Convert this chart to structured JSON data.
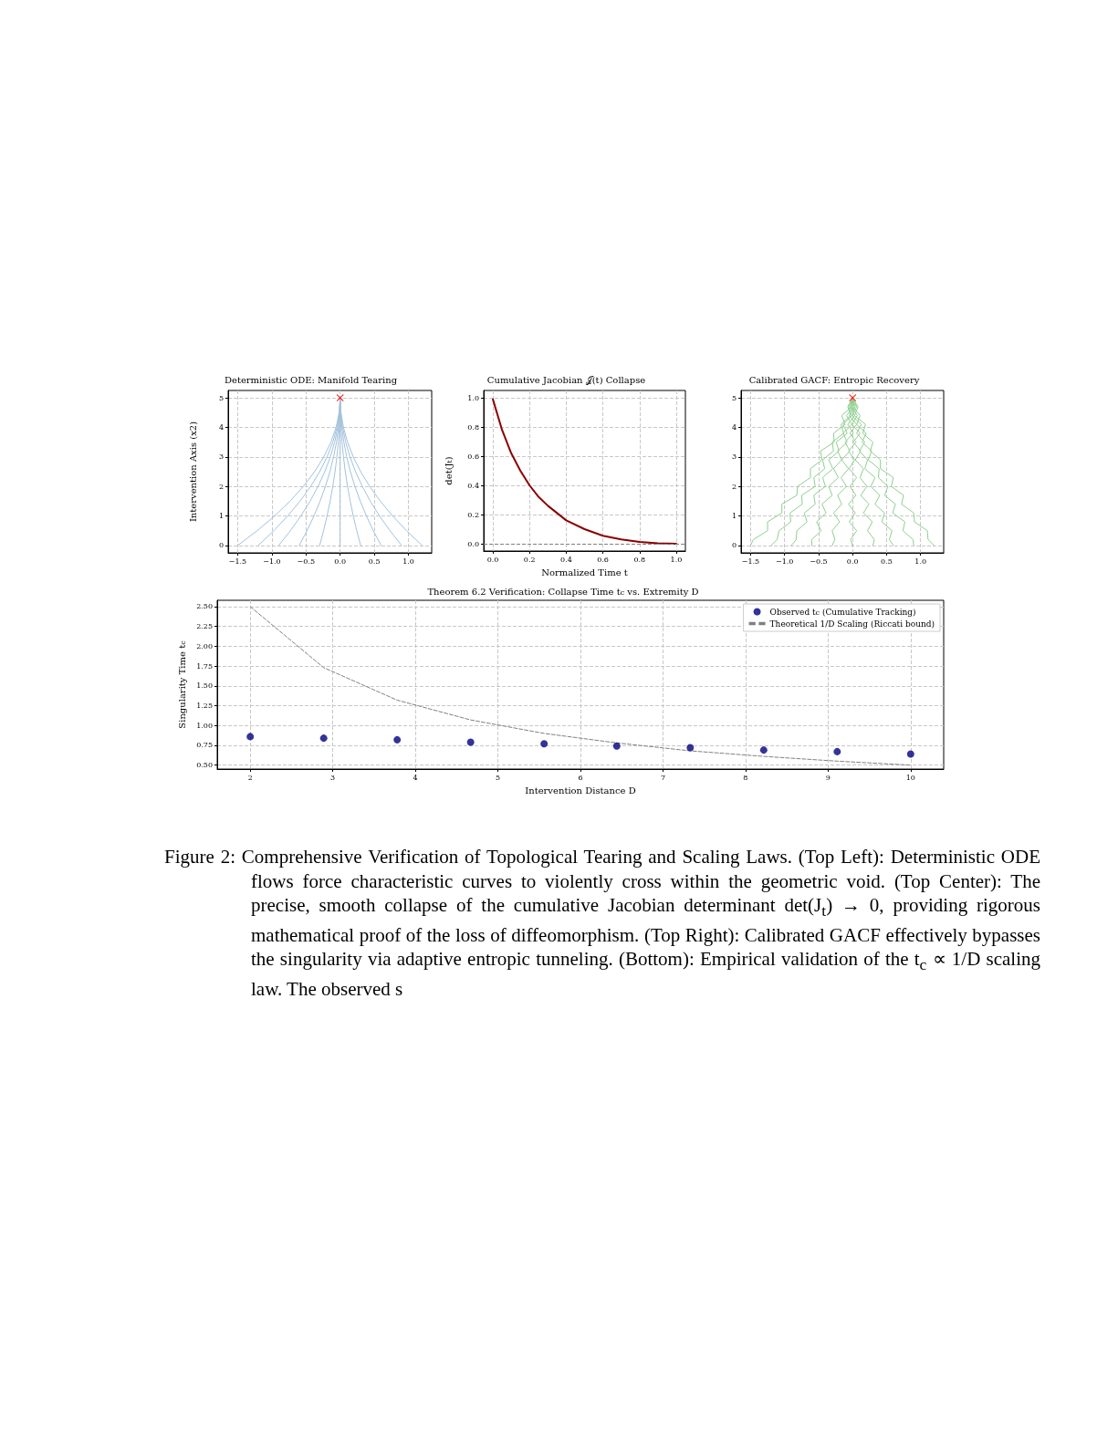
{
  "chart_data": [
    {
      "type": "line",
      "title": "Deterministic ODE: Manifold Tearing",
      "ylabel": "Intervention Axis (x2)",
      "xlim": [
        -1.64,
        1.34
      ],
      "ylim": [
        -0.25,
        5.25
      ],
      "xticks": [
        {
          "value": -1.5,
          "label": "−1.5"
        },
        {
          "value": -1,
          "label": "−1.0"
        },
        {
          "value": -0.5,
          "label": "−0.5"
        },
        {
          "value": 0,
          "label": "0.0"
        },
        {
          "value": 0.5,
          "label": "0.5"
        },
        {
          "value": 1,
          "label": "1.0"
        }
      ],
      "yticks": [
        0,
        1,
        2,
        3,
        4,
        5
      ],
      "grid": true,
      "legend": false,
      "series": [
        {
          "color": "#a3c2dc",
          "marker": "none",
          "x": [
            -1.5,
            -1.215,
            -0.96,
            -0.735,
            -0.54,
            -0.375,
            -0.24,
            -0.135,
            -0.06,
            -0.015,
            0
          ],
          "values": [
            0,
            0.5,
            1,
            1.5,
            2,
            2.5,
            3,
            3.5,
            4,
            4.5,
            5
          ]
        },
        {
          "color": "#a3c2dc",
          "marker": "none",
          "x": [
            -1.2,
            -0.972,
            -0.768,
            -0.588,
            -0.432,
            -0.3,
            -0.192,
            -0.108,
            -0.048,
            -0.012,
            0
          ],
          "values": [
            0,
            0.5,
            1,
            1.5,
            2,
            2.5,
            3,
            3.5,
            4,
            4.5,
            5
          ]
        },
        {
          "color": "#a3c2dc",
          "marker": "none",
          "x": [
            -0.9,
            -0.729,
            -0.576,
            -0.441,
            -0.324,
            -0.225,
            -0.144,
            -0.081,
            -0.036,
            -0.009,
            0
          ],
          "values": [
            0,
            0.5,
            1,
            1.5,
            2,
            2.5,
            3,
            3.5,
            4,
            4.5,
            5
          ]
        },
        {
          "color": "#a3c2dc",
          "marker": "none",
          "x": [
            -0.6,
            -0.486,
            -0.384,
            -0.294,
            -0.216,
            -0.15,
            -0.096,
            -0.054,
            -0.024,
            -0.006,
            0
          ],
          "values": [
            0,
            0.5,
            1,
            1.5,
            2,
            2.5,
            3,
            3.5,
            4,
            4.5,
            5
          ]
        },
        {
          "color": "#a3c2dc",
          "marker": "none",
          "x": [
            -0.3,
            -0.243,
            -0.192,
            -0.147,
            -0.108,
            -0.075,
            -0.048,
            -0.027,
            -0.012,
            -0.003,
            0
          ],
          "values": [
            0,
            0.5,
            1,
            1.5,
            2,
            2.5,
            3,
            3.5,
            4,
            4.5,
            5
          ]
        },
        {
          "color": "#a3c2dc",
          "marker": "none",
          "x": [
            0,
            0,
            0,
            0,
            0,
            0,
            0,
            0,
            0,
            0,
            0
          ],
          "values": [
            0,
            0.5,
            1,
            1.5,
            2,
            2.5,
            3,
            3.5,
            4,
            4.5,
            5
          ]
        },
        {
          "color": "#a3c2dc",
          "marker": "none",
          "x": [
            0.3,
            0.243,
            0.192,
            0.147,
            0.108,
            0.075,
            0.048,
            0.027,
            0.012,
            0.003,
            0
          ],
          "values": [
            0,
            0.5,
            1,
            1.5,
            2,
            2.5,
            3,
            3.5,
            4,
            4.5,
            5
          ]
        },
        {
          "color": "#a3c2dc",
          "marker": "none",
          "x": [
            0.6,
            0.486,
            0.384,
            0.294,
            0.216,
            0.15,
            0.096,
            0.054,
            0.024,
            0.006,
            0
          ],
          "values": [
            0,
            0.5,
            1,
            1.5,
            2,
            2.5,
            3,
            3.5,
            4,
            4.5,
            5
          ]
        },
        {
          "color": "#a3c2dc",
          "marker": "none",
          "x": [
            0.9,
            0.729,
            0.576,
            0.441,
            0.324,
            0.225,
            0.144,
            0.081,
            0.036,
            0.009,
            0
          ],
          "values": [
            0,
            0.5,
            1,
            1.5,
            2,
            2.5,
            3,
            3.5,
            4,
            4.5,
            5
          ]
        },
        {
          "color": "#a3c2dc",
          "marker": "none",
          "x": [
            1.2,
            0.972,
            0.768,
            0.588,
            0.432,
            0.3,
            0.192,
            0.108,
            0.048,
            0.012,
            0
          ],
          "values": [
            0,
            0.5,
            1,
            1.5,
            2,
            2.5,
            3,
            3.5,
            4,
            4.5,
            5
          ]
        },
        {
          "type": "scatter",
          "color": "#ff0000",
          "marker": "cross",
          "x": [
            0
          ],
          "values": [
            5
          ]
        }
      ]
    },
    {
      "type": "line",
      "title": "Cumulative Jacobian 𝒥(t) Collapse",
      "xlabel": "Normalized Time t",
      "ylabel": "det(J$_{t}$)",
      "xlim": [
        -0.05,
        1.05
      ],
      "ylim": [
        -0.05,
        1.05
      ],
      "xticks": [
        {
          "value": 0,
          "label": "0.0"
        },
        {
          "value": 0.2,
          "label": "0.2"
        },
        {
          "value": 0.4,
          "label": "0.4"
        },
        {
          "value": 0.6,
          "label": "0.6"
        },
        {
          "value": 0.8,
          "label": "0.8"
        },
        {
          "value": 1,
          "label": "1.0"
        }
      ],
      "yticks": [
        {
          "value": 0,
          "label": "0.0"
        },
        {
          "value": 0.2,
          "label": "0.2"
        },
        {
          "value": 0.4,
          "label": "0.4"
        },
        {
          "value": 0.6,
          "label": "0.6"
        },
        {
          "value": 0.8,
          "label": "0.8"
        },
        {
          "value": 1,
          "label": "1.0"
        }
      ],
      "grid": true,
      "legend": false,
      "ref_lines": [
        {
          "axis": "y",
          "value": 0,
          "color": "#808080",
          "line_style": "dashed"
        }
      ],
      "series": [
        {
          "color": "#8b0000",
          "marker": "none",
          "x": [
            0,
            0.05,
            0.1,
            0.15,
            0.2,
            0.25,
            0.3,
            0.4,
            0.5,
            0.6,
            0.7,
            0.8,
            0.9,
            1
          ],
          "values": [
            0.99,
            0.78,
            0.62,
            0.5,
            0.4,
            0.32,
            0.26,
            0.16,
            0.1,
            0.055,
            0.03,
            0.012,
            0.003,
            0
          ]
        }
      ]
    },
    {
      "type": "line",
      "title": "Calibrated GACF: Entropic Recovery",
      "xlim": [
        -1.64,
        1.34
      ],
      "ylim": [
        -0.25,
        5.25
      ],
      "xticks": [
        {
          "value": -1.5,
          "label": "−1.5"
        },
        {
          "value": -1,
          "label": "−1.0"
        },
        {
          "value": -0.5,
          "label": "−0.5"
        },
        {
          "value": 0,
          "label": "0.0"
        },
        {
          "value": 0.5,
          "label": "0.5"
        },
        {
          "value": 1,
          "label": "1.0"
        }
      ],
      "yticks": [
        0,
        1,
        2,
        3,
        4,
        5
      ],
      "grid": true,
      "legend": false,
      "series": [
        {
          "color": "#8fcf8f",
          "marker": "none",
          "x": [
            0,
            -0.01,
            -0.16,
            -0.11,
            -0.28,
            -0.27,
            -0.47,
            -0.45,
            -0.62,
            -0.62,
            -0.81,
            -0.82,
            -1.04,
            -1.04,
            -1.25,
            -1.25,
            -1.46,
            -1.5
          ],
          "values": [
            5,
            4.7,
            4.4,
            4.1,
            3.8,
            3.5,
            3.2,
            2.9,
            2.6,
            2.3,
            2,
            1.7,
            1.4,
            1.1,
            0.8,
            0.5,
            0.2,
            0
          ]
        },
        {
          "color": "#8fcf8f",
          "marker": "none",
          "x": [
            0,
            -0.07,
            -0.03,
            -0.17,
            -0.13,
            -0.3,
            -0.28,
            -0.44,
            -0.41,
            -0.57,
            -0.55,
            -0.75,
            -0.74,
            -0.92,
            -0.91,
            -1.08,
            -1.11,
            -1.2
          ],
          "values": [
            5,
            4.7,
            4.4,
            4.1,
            3.8,
            3.5,
            3.2,
            2.9,
            2.6,
            2.3,
            2,
            1.7,
            1.4,
            1.1,
            0.8,
            0.5,
            0.2,
            0
          ]
        },
        {
          "color": "#8fcf8f",
          "marker": "none",
          "x": [
            0,
            -0.06,
            -0.01,
            -0.14,
            -0.08,
            -0.24,
            -0.2,
            -0.35,
            -0.29,
            -0.44,
            -0.4,
            -0.57,
            -0.55,
            -0.71,
            -0.67,
            -0.82,
            -0.83,
            -0.9
          ],
          "values": [
            5,
            4.7,
            4.4,
            4.1,
            3.8,
            3.5,
            3.2,
            2.9,
            2.6,
            2.3,
            2,
            1.7,
            1.4,
            1.1,
            0.8,
            0.5,
            0.2,
            0
          ]
        },
        {
          "color": "#8fcf8f",
          "marker": "none",
          "x": [
            0,
            0.02,
            -0.09,
            -0.01,
            -0.14,
            -0.08,
            -0.22,
            -0.16,
            -0.28,
            -0.21,
            -0.35,
            -0.3,
            -0.45,
            -0.39,
            -0.53,
            -0.46,
            -0.6,
            -0.6
          ],
          "values": [
            5,
            4.7,
            4.4,
            4.1,
            3.8,
            3.5,
            3.2,
            2.9,
            2.6,
            2.3,
            2,
            1.7,
            1.4,
            1.1,
            0.8,
            0.5,
            0.2,
            0
          ]
        },
        {
          "color": "#8fcf8f",
          "marker": "none",
          "x": [
            0,
            -0.04,
            0.03,
            -0.07,
            0.01,
            -0.11,
            -0.04,
            -0.16,
            -0.06,
            -0.17,
            -0.09,
            -0.22,
            -0.16,
            -0.28,
            -0.19,
            -0.3,
            -0.26,
            -0.3
          ],
          "values": [
            5,
            4.7,
            4.4,
            4.1,
            3.8,
            3.5,
            3.2,
            2.9,
            2.6,
            2.3,
            2,
            1.7,
            1.4,
            1.1,
            0.8,
            0.5,
            0.2,
            0
          ]
        },
        {
          "color": "#8fcf8f",
          "marker": "none",
          "x": [
            0,
            0.04,
            -0.05,
            0.06,
            -0.04,
            0.05,
            -0.06,
            0.03,
            -0.05,
            0.06,
            -0.04,
            0.05,
            -0.06,
            0.04,
            -0.05,
            0.06,
            -0.03,
            0
          ],
          "values": [
            5,
            4.7,
            4.4,
            4.1,
            3.8,
            3.5,
            3.2,
            2.9,
            2.6,
            2.3,
            2,
            1.7,
            1.4,
            1.1,
            0.8,
            0.5,
            0.2,
            0
          ]
        },
        {
          "color": "#8fcf8f",
          "marker": "none",
          "x": [
            0,
            -0.02,
            0.07,
            -0.01,
            0.11,
            0.01,
            0.12,
            0.04,
            0.16,
            0.11,
            0.21,
            0.12,
            0.24,
            0.16,
            0.29,
            0.22,
            0.32,
            0.3
          ],
          "values": [
            5,
            4.7,
            4.4,
            4.1,
            3.8,
            3.5,
            3.2,
            2.9,
            2.6,
            2.3,
            2,
            1.7,
            1.4,
            1.1,
            0.8,
            0.5,
            0.2,
            0
          ]
        },
        {
          "color": "#8fcf8f",
          "marker": "none",
          "x": [
            0,
            0.06,
            -0.01,
            0.13,
            0.06,
            0.18,
            0.1,
            0.22,
            0.18,
            0.33,
            0.27,
            0.4,
            0.33,
            0.47,
            0.43,
            0.58,
            0.54,
            0.6
          ],
          "values": [
            5,
            4.7,
            4.4,
            4.1,
            3.8,
            3.5,
            3.2,
            2.9,
            2.6,
            2.3,
            2,
            1.7,
            1.4,
            1.1,
            0.8,
            0.5,
            0.2,
            0
          ]
        },
        {
          "color": "#8fcf8f",
          "marker": "none",
          "x": [
            0,
            0,
            0.11,
            0.06,
            0.2,
            0.14,
            0.28,
            0.23,
            0.39,
            0.38,
            0.52,
            0.47,
            0.63,
            0.59,
            0.77,
            0.74,
            0.89,
            0.9
          ],
          "values": [
            5,
            4.7,
            4.4,
            4.1,
            3.8,
            3.5,
            3.2,
            2.9,
            2.6,
            2.3,
            2,
            1.7,
            1.4,
            1.1,
            0.8,
            0.5,
            0.2,
            0
          ]
        },
        {
          "color": "#8fcf8f",
          "marker": "none",
          "x": [
            0,
            0.08,
            0.03,
            0.19,
            0.15,
            0.3,
            0.26,
            0.41,
            0.41,
            0.6,
            0.57,
            0.75,
            0.72,
            0.9,
            0.91,
            1.1,
            1.11,
            1.2
          ],
          "values": [
            5,
            4.7,
            4.4,
            4.1,
            3.8,
            3.5,
            3.2,
            2.9,
            2.6,
            2.3,
            2,
            1.7,
            1.4,
            1.1,
            0.8,
            0.5,
            0.2,
            0
          ]
        },
        {
          "type": "scatter",
          "color": "#ff0000",
          "marker": "cross",
          "x": [
            0
          ],
          "values": [
            5
          ]
        }
      ]
    },
    {
      "type": "scatter",
      "title": "Theorem 6.2 Verification: Collapse Time t$_{c}$ vs. Extremity D",
      "xlabel": "Intervention Distance D",
      "ylabel": "Singularity Time t$_{c}$",
      "xlim": [
        1.6,
        10.4
      ],
      "ylim": [
        0.45,
        2.58
      ],
      "xticks": [
        2,
        3,
        4,
        5,
        6,
        7,
        8,
        9,
        10
      ],
      "yticks": [
        {
          "value": 0.5,
          "label": "0.50"
        },
        {
          "value": 0.75,
          "label": "0.75"
        },
        {
          "value": 1,
          "label": "1.00"
        },
        {
          "value": 1.25,
          "label": "1.25"
        },
        {
          "value": 1.5,
          "label": "1.50"
        },
        {
          "value": 1.75,
          "label": "1.75"
        },
        {
          "value": 2,
          "label": "2.00"
        },
        {
          "value": 2.25,
          "label": "2.25"
        },
        {
          "value": 2.5,
          "label": "2.50"
        }
      ],
      "grid": true,
      "legend": "top right",
      "x": [
        2,
        2.89,
        3.78,
        4.67,
        5.56,
        6.44,
        7.33,
        8.22,
        9.11,
        10
      ],
      "series": [
        {
          "name": "Observed t$_{c}$ (Cumulative Tracking)",
          "color": "#000080",
          "marker": "circle",
          "values": [
            0.86,
            0.84,
            0.82,
            0.79,
            0.77,
            0.74,
            0.72,
            0.69,
            0.67,
            0.64
          ]
        },
        {
          "name": "Theoretical 1/D Scaling (Riccati bound)",
          "type": "line",
          "color": "#808080",
          "marker": "none",
          "line_style": "dashed",
          "values": [
            2.5,
            1.73,
            1.32,
            1.07,
            0.9,
            0.78,
            0.68,
            0.61,
            0.55,
            0.5
          ]
        }
      ],
      "annotations": [
        "Figure 2: Comprehensive Verification of Topological Tearing and Scaling Laws. (Top Left): Deterministic ODE flows force characteristic curves to violently cross within the geometric void. (Top Center): The precise, smooth collapse of the cumulative Jacobian determinant det(J$_{t}$) → 0, providing rigorous mathematical proof of the loss of diffeomorphism. (Top Right): Calibrated GACF effectively bypasses the singularity via adaptive entropic tunneling. (Bottom): Empirical validation of the t$_{c}$ ∝ 1/D scaling law. The observed s"
      ]
    }
  ]
}
